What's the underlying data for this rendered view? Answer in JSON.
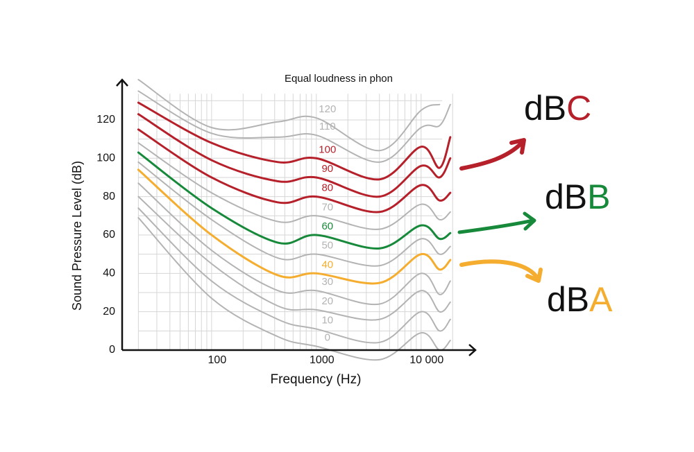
{
  "chart_data": {
    "type": "line",
    "title": "Equal loudness in phon",
    "xlabel": "Frequency (Hz)",
    "ylabel": "Sound Pressure Level (dB)",
    "x": [
      20,
      100,
      430,
      1000,
      4000,
      10000,
      15000,
      19000
    ],
    "xscale": "log",
    "xlim": [
      14,
      32000
    ],
    "ylim": [
      0,
      140
    ],
    "xticks": [
      100,
      1000,
      {
        "value": 10000,
        "label": "10 000"
      }
    ],
    "yticks": [
      0,
      20,
      40,
      60,
      80,
      100,
      120
    ],
    "grid": true,
    "xgrid": [
      20,
      30,
      40,
      50,
      60,
      70,
      80,
      90,
      100,
      200,
      300,
      400,
      500,
      600,
      700,
      800,
      900,
      1000,
      2000,
      3000,
      4000,
      5000,
      6000,
      7000,
      8000,
      9000,
      10000,
      20000
    ],
    "ygrid": [
      10,
      20,
      30,
      40,
      50,
      60,
      70,
      80,
      90,
      100,
      110,
      120,
      130
    ],
    "series": [
      {
        "name": "120",
        "color": "#b3b3b3",
        "width": 2,
        "values": [
          141,
          116,
          119,
          121,
          104,
          125,
          128,
          null
        ]
      },
      {
        "name": "110",
        "color": "#b3b3b3",
        "width": 2,
        "values": [
          135,
          113,
          111,
          112,
          98,
          116,
          117,
          128
        ]
      },
      {
        "name": "100",
        "color": "#b5202a",
        "width": 3,
        "values": [
          129,
          108,
          98,
          100,
          89,
          106,
          95,
          111
        ]
      },
      {
        "name": "90",
        "color": "#b5202a",
        "width": 3,
        "values": [
          123,
          99,
          88,
          90,
          80,
          96,
          90,
          100
        ]
      },
      {
        "name": "80",
        "color": "#b5202a",
        "width": 3,
        "values": [
          115,
          90,
          77,
          80,
          72,
          86,
          78,
          82
        ]
      },
      {
        "name": "70",
        "color": "#b3b3b3",
        "width": 2,
        "values": [
          108,
          82,
          67,
          70,
          63,
          76,
          68,
          72
        ]
      },
      {
        "name": "60",
        "color": "#17893a",
        "width": 3,
        "values": [
          103,
          74,
          56,
          60,
          53,
          65,
          58,
          61
        ]
      },
      {
        "name": "50",
        "color": "#b3b3b3",
        "width": 2,
        "values": [
          98,
          68,
          48,
          50,
          44,
          58,
          50,
          54
        ]
      },
      {
        "name": "40",
        "color": "#f5ad2f",
        "width": 3,
        "values": [
          94,
          60,
          39,
          40,
          35,
          50,
          42,
          47
        ]
      },
      {
        "name": "30",
        "color": "#b3b3b3",
        "width": 2,
        "values": [
          87,
          52,
          31,
          31,
          24,
          40,
          29,
          36
        ]
      },
      {
        "name": "20",
        "color": "#b3b3b3",
        "width": 2,
        "values": [
          80,
          45,
          23,
          21,
          16,
          31,
          20,
          25
        ]
      },
      {
        "name": "10",
        "color": "#b3b3b3",
        "width": 2,
        "values": [
          74,
          36,
          16,
          11,
          4,
          20,
          10,
          16
        ]
      },
      {
        "name": "0",
        "color": "#b3b3b3",
        "width": 2,
        "values": [
          69,
          27,
          7,
          2,
          -5,
          9,
          0,
          5
        ]
      }
    ],
    "annotations": [
      {
        "prefix": "dB",
        "letter": "C",
        "color": "#b5202a"
      },
      {
        "prefix": "dB",
        "letter": "B",
        "color": "#17893a"
      },
      {
        "prefix": "dB",
        "letter": "A",
        "color": "#f5ad2f"
      }
    ]
  }
}
